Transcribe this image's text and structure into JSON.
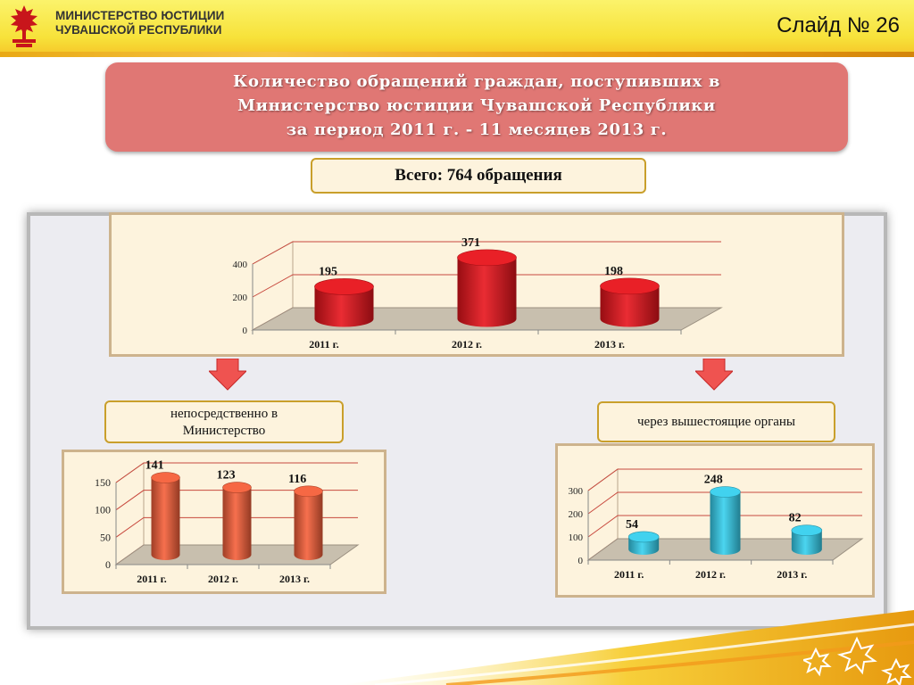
{
  "header": {
    "org_line1": "МИНИСТЕРСТВО ЮСТИЦИИ",
    "org_line2": "ЧУВАШСКОЙ РЕСПУБЛИКИ",
    "slide_label": "Слайд № 26"
  },
  "title": {
    "line1": "Количество обращений граждан, поступивших в",
    "line2": "Министерство юстиции Чувашской Республики",
    "line3": "за период 2011 г. - 11 месяцев 2013 г."
  },
  "total": "Всего: 764 обращения",
  "labels": {
    "direct_line1": "непосредственно в",
    "direct_line2": "Министерство",
    "higher": "через вышестоящие органы"
  },
  "colors": {
    "main_bars": "#e8141c",
    "direct_bars": "#f5603a",
    "higher_bars": "#37d0ee",
    "floor": "#c8bfae"
  },
  "chart_data": [
    {
      "id": "total",
      "type": "bar",
      "categories": [
        "2011 г.",
        "2012 г.",
        "2013 г."
      ],
      "values": [
        195,
        371,
        198
      ],
      "ylim": [
        0,
        400
      ],
      "yticks": [
        0,
        200,
        400
      ]
    },
    {
      "id": "direct",
      "type": "bar",
      "categories": [
        "2011 г.",
        "2012 г.",
        "2013 г."
      ],
      "values": [
        141,
        123,
        116
      ],
      "ylim": [
        0,
        150
      ],
      "yticks": [
        0,
        50,
        100,
        150
      ]
    },
    {
      "id": "higher",
      "type": "bar",
      "categories": [
        "2011 г.",
        "2012 г.",
        "2013 г."
      ],
      "values": [
        54,
        248,
        82
      ],
      "ylim": [
        0,
        300
      ],
      "yticks": [
        0,
        100,
        200,
        300
      ]
    }
  ]
}
